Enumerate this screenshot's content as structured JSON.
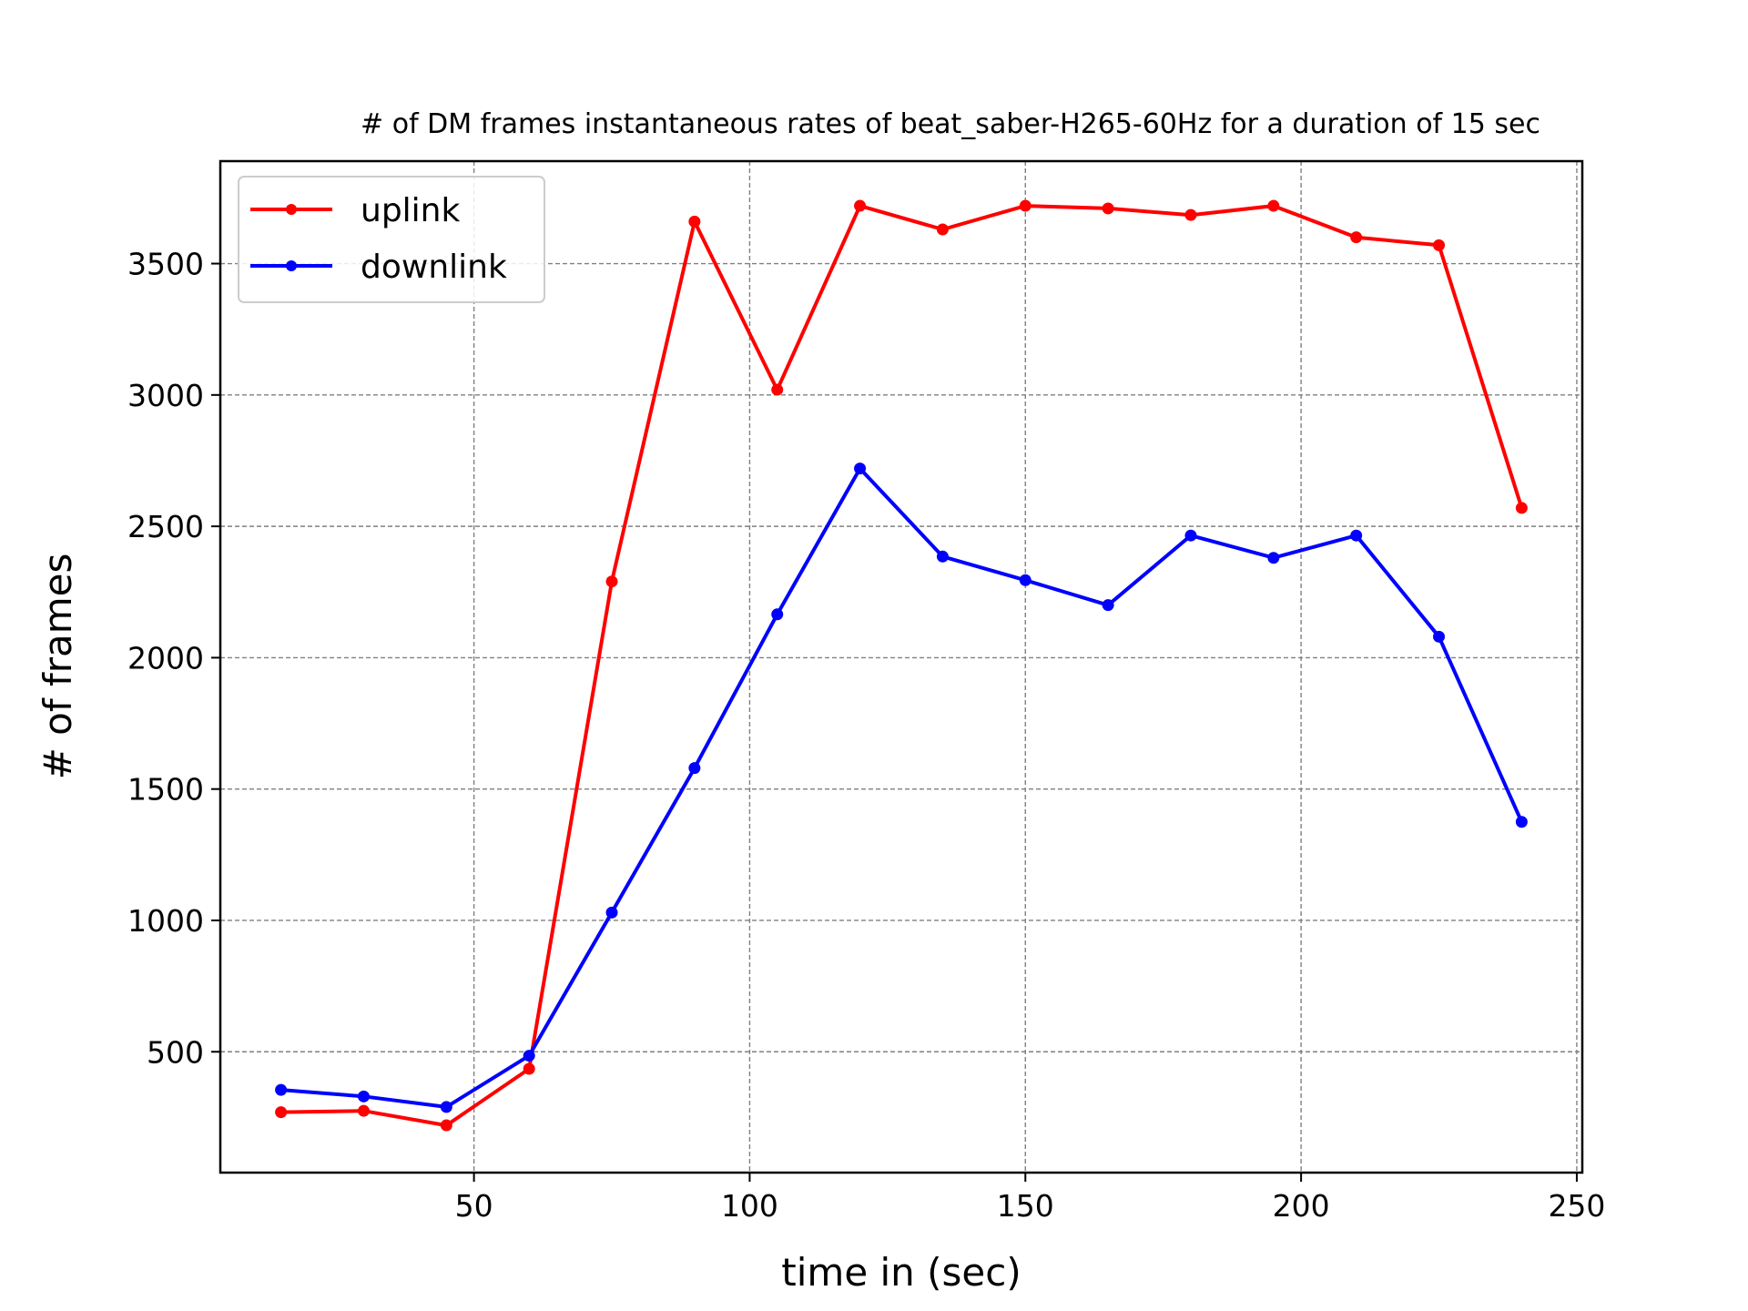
{
  "chart_data": {
    "type": "line",
    "title": "# of DM frames instantaneous rates of beat_saber-H265-60Hz for a duration of 15 sec",
    "xlabel": "time in (sec)",
    "ylabel": "# of frames",
    "xlim": [
      4,
      251
    ],
    "ylim": [
      40,
      3890
    ],
    "xticks": [
      50,
      100,
      150,
      200,
      250
    ],
    "yticks": [
      500,
      1000,
      1500,
      2000,
      2500,
      3000,
      3500
    ],
    "grid": true,
    "legend_position": "upper-left",
    "x": [
      15,
      30,
      45,
      60,
      75,
      90,
      105,
      120,
      135,
      150,
      165,
      180,
      195,
      210,
      225,
      240
    ],
    "series": [
      {
        "name": "uplink",
        "color": "#ff0000",
        "values": [
          270,
          275,
          220,
          435,
          2290,
          3660,
          3020,
          3720,
          3630,
          3720,
          3710,
          3685,
          3720,
          3600,
          3570,
          2570
        ]
      },
      {
        "name": "downlink",
        "color": "#0000ff",
        "values": [
          355,
          330,
          290,
          485,
          1030,
          1580,
          2165,
          2720,
          2385,
          2295,
          2200,
          2465,
          2380,
          2465,
          2080,
          1375
        ]
      }
    ]
  }
}
